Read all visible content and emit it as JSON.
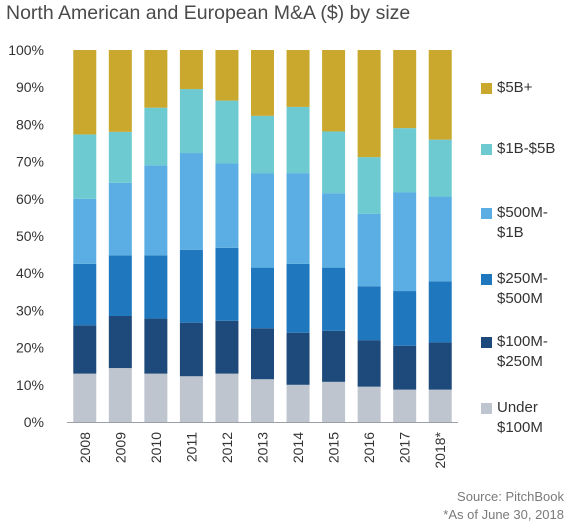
{
  "chart_data": {
    "type": "bar",
    "stacked": true,
    "title": "North American and European M&A ($) by size",
    "categories": [
      "2008",
      "2009",
      "2010",
      "2011",
      "2012",
      "2013",
      "2014",
      "2015",
      "2016",
      "2017",
      "2018*"
    ],
    "y_ticks": [
      "0%",
      "10%",
      "20%",
      "30%",
      "40%",
      "50%",
      "60%",
      "70%",
      "80%",
      "90%",
      "100%"
    ],
    "ylim": [
      0,
      100
    ],
    "grid": false,
    "legend_position": "right",
    "series": [
      {
        "name": "Under $100M",
        "color": "#bfc5ce",
        "values": [
          13,
          14.5,
          13,
          12.3,
          13,
          11.5,
          10,
          10.8,
          9.5,
          8.7,
          8.7
        ]
      },
      {
        "name": "$100M-$250M",
        "color": "#1d4a7a",
        "values": [
          13,
          14,
          14.8,
          14.4,
          14.2,
          13.7,
          14,
          13.7,
          12.5,
          11.8,
          12.7
        ]
      },
      {
        "name": "$250M-$500M",
        "color": "#1f78be",
        "values": [
          16.5,
          16.3,
          17,
          19.6,
          19.6,
          16.3,
          18.5,
          17,
          14.5,
          14.7,
          16.4
        ]
      },
      {
        "name": "$500M-$1B",
        "color": "#5aaee3",
        "values": [
          17.5,
          19.5,
          24.2,
          26,
          22.7,
          25.3,
          24.4,
          20,
          19.5,
          26.5,
          22.8
        ]
      },
      {
        "name": "$1B-$5B",
        "color": "#6ecad1",
        "values": [
          17.3,
          13.7,
          15.5,
          17.2,
          16.9,
          15.5,
          17.8,
          16.6,
          15.2,
          17.3,
          15.3
        ]
      },
      {
        "name": "$5B+",
        "color": "#c9a82d",
        "values": [
          22.7,
          22,
          15.5,
          10.5,
          13.6,
          17.7,
          15.3,
          21.9,
          28.8,
          21,
          24.1
        ]
      }
    ],
    "legend": [
      {
        "lines": [
          "$5B+"
        ],
        "color": "#c9a82d"
      },
      {
        "lines": [
          "$1B-$5B"
        ],
        "color": "#6ecad1"
      },
      {
        "lines": [
          "$500M-",
          "$1B"
        ],
        "color": "#5aaee3"
      },
      {
        "lines": [
          "$250M-",
          "$500M"
        ],
        "color": "#1f78be"
      },
      {
        "lines": [
          "$100M-",
          "$250M"
        ],
        "color": "#1d4a7a"
      },
      {
        "lines": [
          "Under",
          "$100M"
        ],
        "color": "#bfc5ce"
      }
    ],
    "source": "Source: PitchBook",
    "footnote": "*As of June 30, 2018"
  }
}
